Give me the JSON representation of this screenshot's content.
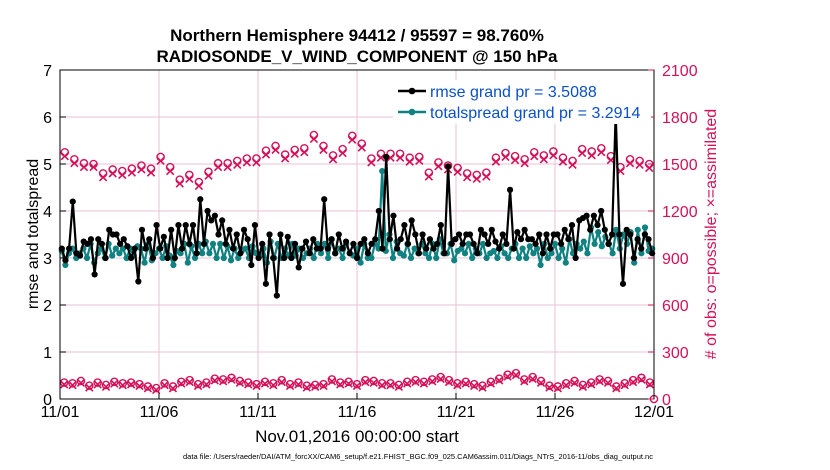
{
  "chart_data": {
    "type": "line",
    "title": [
      "Northern Hemisphere 94412 / 95597 = 98.760%",
      "RADIOSONDE_V_WIND_COMPONENT @ 150 hPa"
    ],
    "xlabel": "Nov.01,2016 00:00:00 start",
    "ylabel": "rmse and totalspread",
    "ylabel_right": "# of obs: o=possible; ×=assimilated",
    "xlim": [
      0,
      30
    ],
    "ylim": [
      0,
      7
    ],
    "ylim_right": [
      0,
      2100
    ],
    "x_ticks": [
      0,
      5,
      10,
      15,
      20,
      25,
      30
    ],
    "x_tick_labels": [
      "11/01",
      "11/06",
      "11/11",
      "11/16",
      "11/21",
      "11/26",
      "12/01"
    ],
    "y_ticks": [
      "0",
      "1",
      "2",
      "3",
      "4",
      "5",
      "6",
      "7"
    ],
    "y_ticks_right": [
      "0",
      "300",
      "600",
      "900",
      "1200",
      "1500",
      "1800",
      "2100"
    ],
    "footer": "data file: /Users/raeder/DAI/ATM_forcXX/CAM6_setup/f.e21.FHIST_BGC.f09_025.CAM6assim.011/Diags_NTrS_2016-11/obs_diag_output.nc",
    "colors": {
      "rmse": "#000000",
      "spread": "#108282",
      "obs": "#d41159",
      "grid": "#e8c0d6"
    },
    "series": [
      {
        "name": "rmse",
        "legend": "rmse grand pr = 3.5088",
        "values": [
          3.2,
          2.95,
          3.2,
          4.2,
          3.1,
          3.05,
          3.35,
          3.3,
          3.4,
          2.65,
          3.4,
          3.3,
          3.0,
          3.6,
          3.5,
          3.5,
          3.3,
          3.4,
          3.25,
          3.0,
          3.2,
          2.5,
          3.6,
          3.2,
          3.4,
          3.0,
          3.7,
          3.2,
          3.45,
          3.0,
          3.6,
          3.0,
          3.7,
          3.2,
          3.7,
          3.3,
          3.7,
          3.1,
          4.25,
          3.3,
          4.0,
          3.8,
          3.9,
          3.5,
          3.8,
          3.3,
          3.6,
          3.2,
          3.5,
          3.1,
          3.6,
          3.4,
          2.85,
          3.7,
          3.0,
          3.3,
          2.45,
          3.5,
          3.0,
          2.2,
          3.5,
          3.0,
          3.45,
          3.0,
          3.3,
          2.8,
          3.2,
          3.35,
          3.1,
          3.4,
          3.2,
          3.2,
          4.25,
          3.2,
          3.4,
          3.1,
          3.5,
          3.2,
          3.35,
          3.1,
          3.3,
          3.0,
          3.3,
          3.4,
          3.1,
          3.3,
          3.4,
          4.0,
          3.2,
          5.15,
          3.4,
          3.9,
          3.2,
          3.4,
          3.7,
          3.3,
          3.8,
          3.5,
          3.1,
          3.5,
          3.2,
          3.4,
          3.2,
          3.3,
          3.7,
          3.1,
          4.95,
          3.3,
          3.4,
          3.5,
          3.3,
          3.5,
          3.5,
          3.3,
          3.1,
          3.6,
          3.5,
          3.3,
          3.6,
          3.35,
          3.2,
          3.5,
          3.3,
          4.45,
          3.2,
          3.55,
          3.4,
          3.6,
          3.4,
          3.4,
          3.3,
          3.5,
          3.1,
          3.5,
          3.2,
          3.5,
          3.5,
          3.3,
          3.6,
          3.4,
          3.7,
          3.0,
          3.8,
          3.85,
          3.9,
          3.6,
          3.9,
          3.7,
          4.0,
          3.6,
          3.3,
          3.5,
          6.1,
          3.5,
          2.45,
          3.6,
          3.5,
          3.0,
          3.4,
          3.2,
          3.5,
          3.4,
          3.1
        ]
      },
      {
        "name": "totalspread",
        "legend": "totalspread grand pr = 3.2914",
        "values": [
          3.15,
          2.85,
          3.1,
          3.2,
          3.0,
          3.1,
          3.2,
          3.0,
          3.3,
          2.9,
          3.1,
          3.2,
          3.0,
          3.3,
          3.05,
          3.2,
          3.1,
          3.2,
          3.0,
          3.2,
          3.05,
          3.25,
          3.2,
          2.9,
          3.3,
          2.95,
          3.1,
          3.2,
          3.0,
          3.25,
          3.05,
          2.85,
          3.15,
          3.1,
          3.3,
          2.9,
          3.25,
          3.0,
          3.3,
          3.1,
          3.35,
          3.1,
          3.3,
          3.0,
          3.3,
          3.0,
          3.25,
          2.95,
          3.2,
          3.0,
          3.15,
          3.2,
          3.0,
          3.25,
          3.1,
          3.05,
          3.2,
          2.9,
          3.35,
          3.0,
          3.3,
          3.0,
          3.2,
          3.05,
          3.3,
          3.05,
          3.2,
          3.0,
          3.1,
          3.2,
          3.0,
          3.3,
          3.1,
          3.3,
          3.0,
          3.4,
          3.1,
          3.2,
          3.0,
          3.3,
          3.1,
          3.05,
          3.2,
          2.9,
          3.3,
          3.0,
          3.0,
          3.3,
          3.2,
          4.85,
          3.15,
          3.5,
          3.0,
          3.35,
          3.1,
          3.05,
          3.3,
          3.0,
          3.2,
          3.1,
          3.3,
          3.1,
          3.0,
          3.3,
          3.0,
          3.4,
          3.1,
          3.1,
          3.3,
          2.95,
          3.15,
          3.2,
          3.1,
          3.3,
          3.0,
          3.2,
          3.1,
          3.3,
          3.0,
          3.1,
          3.15,
          3.0,
          3.25,
          3.1,
          3.0,
          3.2,
          3.3,
          3.0,
          3.2,
          3.0,
          3.25,
          3.1,
          3.2,
          2.85,
          3.3,
          3.0,
          3.1,
          3.3,
          3.0,
          3.2,
          2.9,
          3.4,
          3.1,
          3.3,
          3.2,
          3.35,
          3.1,
          3.65,
          3.3,
          3.55,
          3.25,
          3.45,
          3.3,
          3.1,
          3.6,
          3.2,
          3.5,
          3.3,
          3.55,
          2.9,
          3.6,
          3.1,
          3.65,
          3.15,
          3.2
        ]
      }
    ],
    "obs_possible_top": [
      1575,
      1530,
      1505,
      1500,
      1440,
      1465,
      1455,
      1470,
      1490,
      1470,
      1545,
      1480,
      1400,
      1430,
      1385,
      1450,
      1505,
      1505,
      1520,
      1535,
      1535,
      1585,
      1615,
      1560,
      1590,
      1600,
      1685,
      1615,
      1555,
      1595,
      1680,
      1630,
      1535,
      1565,
      1565,
      1565,
      1540,
      1545,
      1445,
      1510,
      1490,
      1475,
      1440,
      1430,
      1445,
      1540,
      1570,
      1550,
      1530,
      1575,
      1555,
      1580,
      1540,
      1520,
      1595,
      1580,
      1600,
      1550,
      1480,
      1530,
      1520,
      1500
    ],
    "obs_assimilated_top": [
      1550,
      1505,
      1480,
      1480,
      1415,
      1440,
      1430,
      1445,
      1465,
      1445,
      1520,
      1455,
      1375,
      1405,
      1360,
      1425,
      1480,
      1480,
      1495,
      1510,
      1510,
      1560,
      1590,
      1535,
      1565,
      1575,
      1660,
      1590,
      1530,
      1570,
      1655,
      1605,
      1510,
      1540,
      1540,
      1540,
      1515,
      1520,
      1420,
      1485,
      1465,
      1450,
      1415,
      1405,
      1420,
      1515,
      1545,
      1525,
      1505,
      1550,
      1530,
      1555,
      1515,
      1495,
      1570,
      1555,
      1575,
      1525,
      1455,
      1505,
      1495,
      1475
    ],
    "obs_possible_bottom": [
      105,
      100,
      115,
      85,
      105,
      90,
      110,
      100,
      105,
      95,
      80,
      70,
      100,
      80,
      110,
      120,
      95,
      105,
      130,
      125,
      135,
      115,
      105,
      95,
      110,
      100,
      120,
      95,
      105,
      85,
      90,
      95,
      125,
      105,
      110,
      95,
      120,
      115,
      100,
      100,
      90,
      110,
      120,
      110,
      125,
      140,
      120,
      100,
      110,
      95,
      85,
      110,
      130,
      155,
      165,
      125,
      140,
      115,
      85,
      80,
      100,
      115,
      90,
      105,
      125,
      115,
      80,
      100,
      120,
      135,
      105
    ]
  }
}
